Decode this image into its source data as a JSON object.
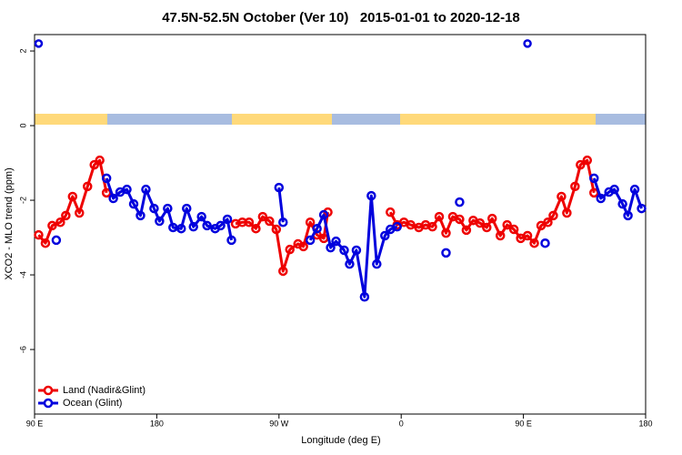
{
  "chart_data": {
    "type": "line",
    "title": "47.5N-52.5N October (Ver 10)   2015-01-01 to 2020-12-18",
    "x_label": "Longitude (deg E)",
    "y_label": "XCO2 - MLO trend (ppm)",
    "xlim": [
      90,
      540
    ],
    "xticks": [
      {
        "value": 90,
        "label": "90 E"
      },
      {
        "value": 180,
        "label": "180"
      },
      {
        "value": 270,
        "label": "90 W"
      },
      {
        "value": 360,
        "label": "0"
      },
      {
        "value": 450,
        "label": "90 E"
      },
      {
        "value": 540,
        "label": "180"
      }
    ],
    "ylim": [
      -7.73,
      2.44
    ],
    "yticks": [
      -6,
      -4,
      -2,
      0,
      2
    ],
    "legend": "bottom-left",
    "series": [
      {
        "name": "Land (Nadir&Glint)",
        "color": "#ee0000",
        "x": [
          93,
          98,
          103,
          109,
          113,
          118,
          123,
          129,
          134,
          138,
          143,
          null,
          238,
          243,
          248,
          253,
          258,
          263,
          268,
          273,
          278,
          284,
          288,
          293,
          298,
          303,
          306,
          null,
          352,
          357,
          362,
          367,
          373,
          378,
          383,
          388,
          393,
          398,
          403,
          408,
          413,
          418,
          423,
          427,
          433,
          438,
          443,
          448,
          453,
          458,
          463,
          468,
          472,
          478,
          482,
          488,
          492,
          497,
          502
        ],
        "values": [
          -2.93,
          -3.15,
          -2.68,
          -2.59,
          -2.41,
          -1.9,
          -2.34,
          -1.63,
          -1.05,
          -0.93,
          -1.8,
          null,
          -2.63,
          -2.59,
          -2.59,
          -2.76,
          -2.44,
          -2.56,
          -2.78,
          -3.9,
          -3.32,
          -3.17,
          -3.24,
          -2.59,
          -2.93,
          -3.02,
          -2.32,
          null,
          -2.32,
          -2.66,
          -2.59,
          -2.66,
          -2.73,
          -2.66,
          -2.71,
          -2.44,
          -2.88,
          -2.44,
          -2.51,
          -2.8,
          -2.54,
          -2.61,
          -2.73,
          -2.49,
          -2.95,
          -2.66,
          -2.78,
          -3.02,
          -2.95,
          -3.15,
          -2.68,
          -2.59,
          -2.41,
          -1.9,
          -2.34,
          -1.63,
          -1.05,
          -0.93,
          -1.8
        ]
      },
      {
        "name": "Ocean (Glint)",
        "color": "#0000dd",
        "x": [
          106,
          null,
          143,
          148,
          153,
          158,
          163,
          168,
          172,
          178,
          182,
          188,
          192,
          198,
          202,
          207,
          213,
          217,
          223,
          227,
          232,
          235,
          null,
          270,
          273,
          null,
          293,
          298,
          303,
          308,
          312,
          318,
          322,
          327,
          333,
          338,
          342,
          348,
          352,
          357,
          null,
          393,
          null,
          403,
          null,
          466,
          null,
          502,
          507,
          513,
          517,
          523,
          527,
          532,
          537
        ],
        "values": [
          -3.07,
          null,
          -1.41,
          -1.95,
          -1.78,
          -1.71,
          -2.1,
          -2.41,
          -1.71,
          -2.22,
          -2.56,
          -2.22,
          -2.73,
          -2.76,
          -2.22,
          -2.71,
          -2.44,
          -2.68,
          -2.76,
          -2.68,
          -2.51,
          -3.07,
          null,
          -1.66,
          -2.59,
          null,
          -3.07,
          -2.76,
          -2.39,
          -3.27,
          -3.1,
          -3.34,
          -3.71,
          -3.34,
          -4.59,
          -1.88,
          -3.71,
          -2.95,
          -2.78,
          -2.71,
          null,
          -3.41,
          null,
          -2.05,
          null,
          -3.15,
          null,
          -1.41,
          -1.95,
          -1.78,
          -1.71,
          -2.1,
          -2.41,
          -1.71,
          -2.22
        ]
      }
    ],
    "outliers": {
      "color": "#0000dd",
      "x": [
        93,
        453
      ],
      "values": [
        2.2,
        2.2
      ]
    }
  }
}
